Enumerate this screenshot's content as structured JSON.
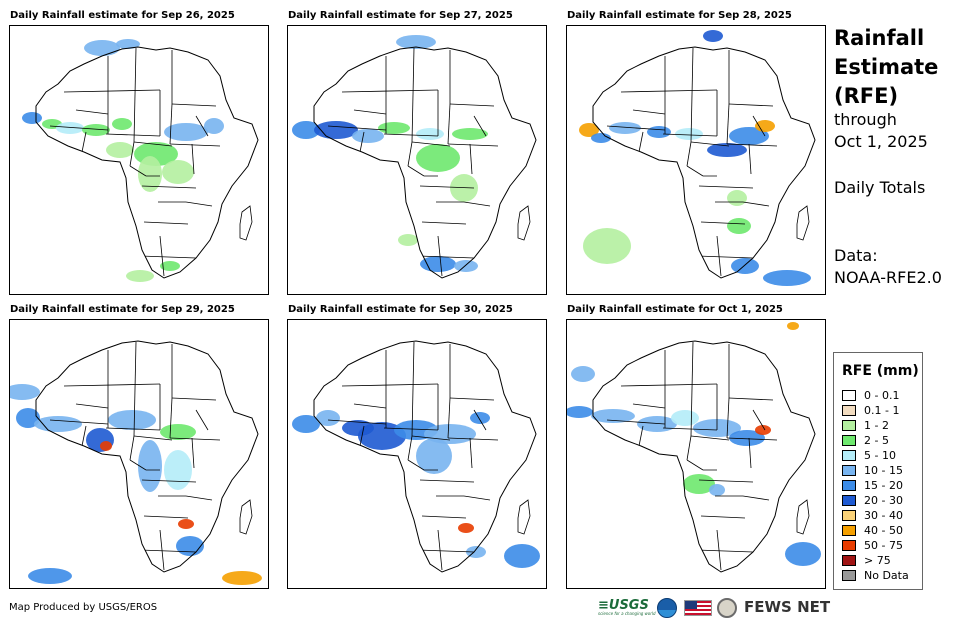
{
  "panels": [
    {
      "title": "Daily Rainfall estimate for Sep 26, 2025"
    },
    {
      "title": "Daily Rainfall estimate for Sep 27, 2025"
    },
    {
      "title": "Daily Rainfall estimate for Sep 28, 2025"
    },
    {
      "title": "Daily Rainfall estimate for Sep 29, 2025"
    },
    {
      "title": "Daily Rainfall estimate for Sep 30, 2025"
    },
    {
      "title": "Daily Rainfall estimate for Oct 1, 2025"
    }
  ],
  "side": {
    "title_line1": "Rainfall",
    "title_line2": "Estimate",
    "title_line3": "(RFE)",
    "through": "through",
    "date": "Oct 1, 2025",
    "totals": "Daily Totals",
    "data_label": "Data:",
    "data_source": "NOAA-RFE2.0"
  },
  "legend": {
    "title": "RFE (mm)",
    "items": [
      {
        "label": "0 - 0.1",
        "color": "#ffffff"
      },
      {
        "label": "0.1 - 1",
        "color": "#f2dcc0"
      },
      {
        "label": "1 - 2",
        "color": "#b4f0a0"
      },
      {
        "label": "2 - 5",
        "color": "#6ee86e"
      },
      {
        "label": "5 - 10",
        "color": "#b4ecf8"
      },
      {
        "label": "10 - 15",
        "color": "#78b4f0"
      },
      {
        "label": "15 - 20",
        "color": "#3c8ce8"
      },
      {
        "label": "20 - 30",
        "color": "#1e5ad2"
      },
      {
        "label": "30 - 40",
        "color": "#fad278"
      },
      {
        "label": "40 - 50",
        "color": "#f5a000"
      },
      {
        "label": "50 - 75",
        "color": "#e83c00"
      },
      {
        "label": "> 75",
        "color": "#a01414"
      },
      {
        "label": "No Data",
        "color": "#999999"
      }
    ]
  },
  "footer": {
    "credit": "Map Produced by USGS/EROS",
    "usgs": "≡USGS",
    "usgs_tagline": "science for a changing world",
    "fews": "FEWS NET"
  }
}
